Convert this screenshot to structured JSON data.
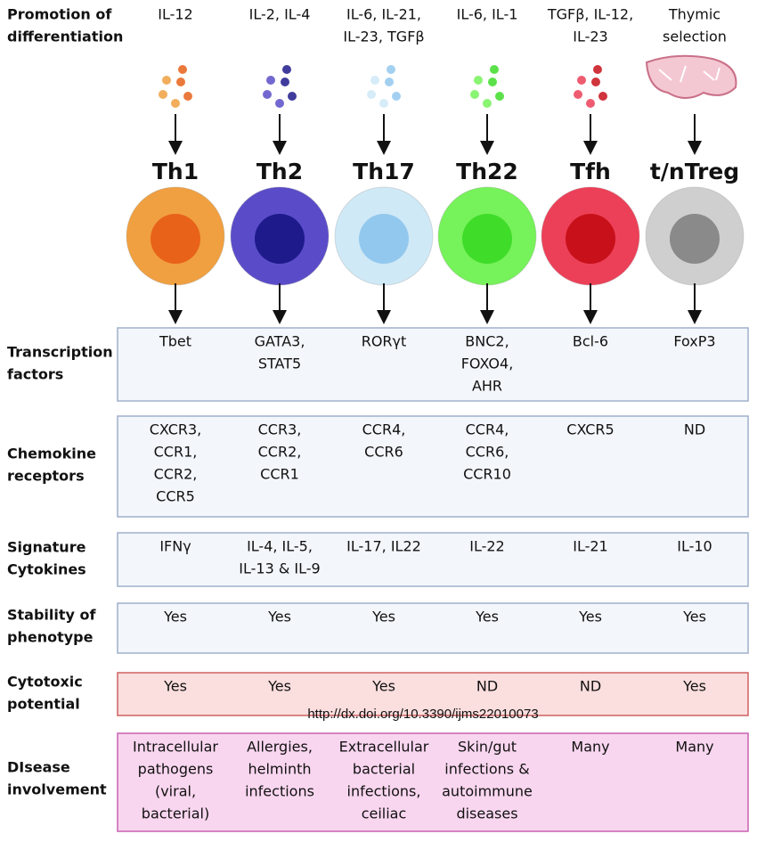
{
  "header": {
    "label": [
      "Promotion of",
      "differentiation"
    ]
  },
  "columns": [
    {
      "name": "Th1",
      "promotion": [
        "IL-12"
      ],
      "color": "#f0a040",
      "core": "#e8621a"
    },
    {
      "name": "Th2",
      "promotion": [
        "IL-2, IL-4"
      ],
      "color": "#5a4cc8",
      "core": "#1e1a8c"
    },
    {
      "name": "Th17",
      "promotion": [
        "IL-6, IL-21,",
        "IL-23, TGFβ"
      ],
      "color": "#cfe9f7",
      "core": "#93c8ee"
    },
    {
      "name": "Th22",
      "promotion": [
        "IL-6, IL-1"
      ],
      "color": "#76f25a",
      "core": "#3fdc2a"
    },
    {
      "name": "Tfh",
      "promotion": [
        "TGFβ, IL-12,",
        "IL-23"
      ],
      "color": "#ec4058",
      "core": "#c8101a"
    },
    {
      "name": "t/nTreg",
      "promotion": [
        "Thymic",
        "selection"
      ],
      "color": "#cfcfcf",
      "core": "#8a8a8a"
    }
  ],
  "rows": [
    {
      "label": [
        "Transcription",
        "factors"
      ],
      "values": [
        [
          "Tbet"
        ],
        [
          "GATA3,",
          "STAT5"
        ],
        [
          "RORγt"
        ],
        [
          "BNC2,",
          "FOXO4,",
          "AHR"
        ],
        [
          "Bcl-6"
        ],
        [
          "FoxP3"
        ]
      ]
    },
    {
      "label": [
        "Chemokine",
        "receptors"
      ],
      "values": [
        [
          "CXCR3,",
          "CCR1,",
          "CCR2,",
          "CCR5"
        ],
        [
          "CCR3,",
          "CCR2,",
          "CCR1"
        ],
        [
          "CCR4,",
          "CCR6"
        ],
        [
          "CCR4,",
          "CCR6,",
          "CCR10"
        ],
        [
          "CXCR5"
        ],
        [
          "ND"
        ]
      ]
    },
    {
      "label": [
        "Signature",
        "Cytokines"
      ],
      "values": [
        [
          "IFNγ"
        ],
        [
          "IL-4, IL-5,",
          "IL-13 & IL-9"
        ],
        [
          "IL-17, IL22"
        ],
        [
          "IL-22"
        ],
        [
          "IL-21"
        ],
        [
          "IL-10"
        ]
      ]
    },
    {
      "label": [
        "Stability of",
        "phenotype"
      ],
      "values": [
        [
          "Yes"
        ],
        [
          "Yes"
        ],
        [
          "Yes"
        ],
        [
          "Yes"
        ],
        [
          "Yes"
        ],
        [
          "Yes"
        ]
      ]
    },
    {
      "label": [
        "Cytotoxic",
        "potential"
      ],
      "values": [
        [
          "Yes"
        ],
        [
          "Yes"
        ],
        [
          "Yes"
        ],
        [
          "ND"
        ],
        [
          "ND"
        ],
        [
          "Yes"
        ]
      ]
    },
    {
      "label": [
        "DIsease",
        "involvement"
      ],
      "values": [
        [
          "Intracellular",
          "pathogens",
          "(viral,",
          "bacterial)"
        ],
        [
          "Allergies,",
          "helminth",
          "infections"
        ],
        [
          "Extracellular",
          "bacterial",
          "infections,",
          "ceiliac"
        ],
        [
          "Skin/gut",
          "infections &",
          "autoimmune",
          "diseases"
        ],
        [
          "Many"
        ],
        [
          "Many"
        ]
      ]
    }
  ],
  "source": "http://dx.doi.org/10.3390/ijms22010073"
}
